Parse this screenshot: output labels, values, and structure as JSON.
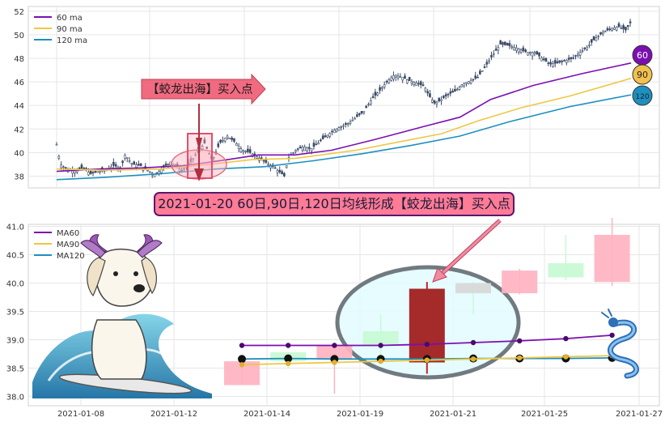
{
  "chart_data": [
    {
      "type": "candlestick",
      "y_ticks": [
        "38",
        "40",
        "42",
        "44",
        "46",
        "48",
        "50",
        "52"
      ],
      "ylim": [
        37,
        52.4
      ],
      "legend": {
        "position": "top-left",
        "entries": [
          {
            "label": "60 ma",
            "color": "#7b0fb1"
          },
          {
            "label": "90 ma",
            "color": "#eec743"
          },
          {
            "label": "120 ma",
            "color": "#1d8fc0"
          }
        ]
      },
      "ma60": [
        [
          0,
          38.4
        ],
        [
          35,
          38.6
        ],
        [
          70,
          38.7
        ],
        [
          105,
          38.9
        ],
        [
          140,
          39.4
        ],
        [
          165,
          39.8
        ],
        [
          195,
          39.8
        ],
        [
          225,
          40.2
        ],
        [
          260,
          41.1
        ],
        [
          300,
          42.2
        ],
        [
          330,
          43.0
        ],
        [
          355,
          44.5
        ],
        [
          390,
          45.7
        ],
        [
          430,
          46.7
        ],
        [
          470,
          47.6
        ]
      ],
      "ma90": [
        [
          0,
          38.6
        ],
        [
          40,
          38.5
        ],
        [
          85,
          38.6
        ],
        [
          125,
          39.0
        ],
        [
          160,
          39.4
        ],
        [
          195,
          39.5
        ],
        [
          245,
          40.2
        ],
        [
          285,
          41.0
        ],
        [
          315,
          41.6
        ],
        [
          345,
          42.7
        ],
        [
          380,
          43.8
        ],
        [
          420,
          44.8
        ],
        [
          470,
          46.3
        ]
      ],
      "ma120": [
        [
          0,
          37.7
        ],
        [
          40,
          37.9
        ],
        [
          85,
          38.2
        ],
        [
          130,
          38.6
        ],
        [
          170,
          38.8
        ],
        [
          210,
          39.3
        ],
        [
          250,
          39.9
        ],
        [
          290,
          40.6
        ],
        [
          330,
          41.4
        ],
        [
          370,
          42.6
        ],
        [
          420,
          43.9
        ],
        [
          470,
          44.9
        ]
      ],
      "price_path": [
        [
          0,
          40.7
        ],
        [
          5,
          39.0
        ],
        [
          15,
          38.5
        ],
        [
          25,
          38.5
        ],
        [
          35,
          38.7
        ],
        [
          45,
          38.2
        ],
        [
          55,
          38.4
        ],
        [
          65,
          38.5
        ],
        [
          75,
          38.9
        ],
        [
          85,
          38.7
        ],
        [
          90,
          39.8
        ],
        [
          100,
          39.0
        ],
        [
          110,
          38.9
        ],
        [
          120,
          38.5
        ],
        [
          130,
          38.1
        ],
        [
          140,
          38.7
        ],
        [
          150,
          39.2
        ],
        [
          165,
          38.5
        ],
        [
          175,
          39.0
        ],
        [
          185,
          40.0
        ],
        [
          195,
          40.8
        ],
        [
          205,
          39.3
        ],
        [
          215,
          40.8
        ],
        [
          225,
          41.4
        ],
        [
          235,
          40.9
        ],
        [
          245,
          40.2
        ],
        [
          255,
          40.0
        ],
        [
          265,
          39.6
        ],
        [
          275,
          39.2
        ],
        [
          285,
          38.8
        ],
        [
          295,
          38.3
        ],
        [
          300,
          38.0
        ],
        [
          305,
          39.5
        ],
        [
          315,
          40.2
        ],
        [
          325,
          40.5
        ],
        [
          335,
          40.3
        ],
        [
          350,
          41.1
        ],
        [
          365,
          41.9
        ],
        [
          375,
          42.2
        ],
        [
          385,
          42.5
        ],
        [
          395,
          43.0
        ],
        [
          405,
          43.5
        ],
        [
          415,
          44.5
        ],
        [
          425,
          45.2
        ],
        [
          435,
          46.0
        ],
        [
          445,
          46.6
        ],
        [
          455,
          46.4
        ],
        [
          465,
          46.1
        ],
        [
          475,
          45.9
        ],
        [
          485,
          45.6
        ],
        [
          490,
          44.9
        ],
        [
          498,
          44.2
        ],
        [
          505,
          44.4
        ],
        [
          515,
          44.9
        ],
        [
          525,
          45.2
        ],
        [
          535,
          45.8
        ],
        [
          545,
          46.1
        ],
        [
          555,
          46.4
        ],
        [
          565,
          47.3
        ],
        [
          575,
          48.3
        ],
        [
          585,
          49.2
        ],
        [
          595,
          49.1
        ],
        [
          600,
          49.0
        ],
        [
          610,
          48.8
        ],
        [
          620,
          48.5
        ],
        [
          630,
          48.5
        ],
        [
          640,
          48.0
        ],
        [
          650,
          47.5
        ],
        [
          660,
          47.6
        ],
        [
          670,
          47.8
        ],
        [
          680,
          48.0
        ],
        [
          690,
          48.5
        ],
        [
          700,
          49.0
        ],
        [
          710,
          49.7
        ],
        [
          720,
          50.2
        ],
        [
          730,
          50.5
        ],
        [
          740,
          50.7
        ],
        [
          750,
          50.4
        ],
        [
          757,
          51.1
        ]
      ],
      "price_labels": [
        {
          "label": "60",
          "color": "#7b0fb1",
          "text_color": "#ffffff"
        },
        {
          "label": "90",
          "color": "#f2c04d",
          "text_color": "#222222"
        },
        {
          "label": "120",
          "color": "#1d8fc0",
          "text_color": "#222222"
        }
      ],
      "annotation": "【蛟龙出海】买入点"
    },
    {
      "type": "candlestick",
      "x_ticks": [
        "2021-01-08",
        "2021-01-12",
        "2021-01-14",
        "2021-01-19",
        "2021-01-21",
        "2021-01-25",
        "2021-01-27"
      ],
      "y_ticks": [
        "38.0",
        "38.5",
        "39.0",
        "39.5",
        "40.0",
        "40.5",
        "41.0"
      ],
      "ylim": [
        37.95,
        41.15
      ],
      "legend": {
        "position": "top-left",
        "entries": [
          {
            "label": "MA60",
            "color": "#7b0fb1"
          },
          {
            "label": "MA90",
            "color": "#eec743"
          },
          {
            "label": "MA120",
            "color": "#1d8fc0"
          }
        ]
      },
      "candles": [
        {
          "x": 0,
          "open": 38.2,
          "close": 38.62,
          "high": 38.62,
          "low": 38.2,
          "dir": "down",
          "color": "#ffb3c1"
        },
        {
          "x": 1,
          "open": 38.62,
          "close": 38.78,
          "high": 38.78,
          "low": 38.5,
          "dir": "up",
          "color": "#c8fad4"
        },
        {
          "x": 2,
          "open": 38.9,
          "close": 38.65,
          "high": 38.95,
          "low": 38.05,
          "dir": "down",
          "color": "#ffb3c1"
        },
        {
          "x": 3,
          "open": 38.9,
          "close": 39.15,
          "high": 39.45,
          "low": 38.6,
          "dir": "up",
          "color": "#c8fad4"
        },
        {
          "x": 4,
          "open": 39.9,
          "close": 38.6,
          "high": 40.02,
          "low": 38.4,
          "dir": "down",
          "color": "#a52a2a"
        },
        {
          "x": 5,
          "open": 39.82,
          "close": 40.0,
          "high": 40.02,
          "low": 39.45,
          "dir": "up",
          "color": "#d8d8d8"
        },
        {
          "x": 6,
          "open": 40.22,
          "close": 39.82,
          "high": 40.25,
          "low": 39.8,
          "dir": "down",
          "color": "#ffb3c1"
        },
        {
          "x": 7,
          "open": 40.1,
          "close": 40.35,
          "high": 40.85,
          "low": 40.05,
          "dir": "up",
          "color": "#c8fad4"
        },
        {
          "x": 8,
          "open": 40.85,
          "close": 40.02,
          "high": 41.15,
          "low": 39.95,
          "dir": "down",
          "color": "#ffb3c1"
        }
      ],
      "ma60": [
        38.9,
        38.9,
        38.9,
        38.9,
        38.92,
        38.95,
        38.98,
        39.02,
        39.08
      ],
      "ma90": [
        38.56,
        38.58,
        38.6,
        38.62,
        38.64,
        38.66,
        38.68,
        38.7,
        38.72
      ],
      "ma120": [
        38.66,
        38.67,
        38.66,
        38.66,
        38.66,
        38.67,
        38.67,
        38.67,
        38.68
      ],
      "annotation": "2021-01-20 60日,90日,120日均线形成【蛟龙出海】买入点"
    }
  ]
}
